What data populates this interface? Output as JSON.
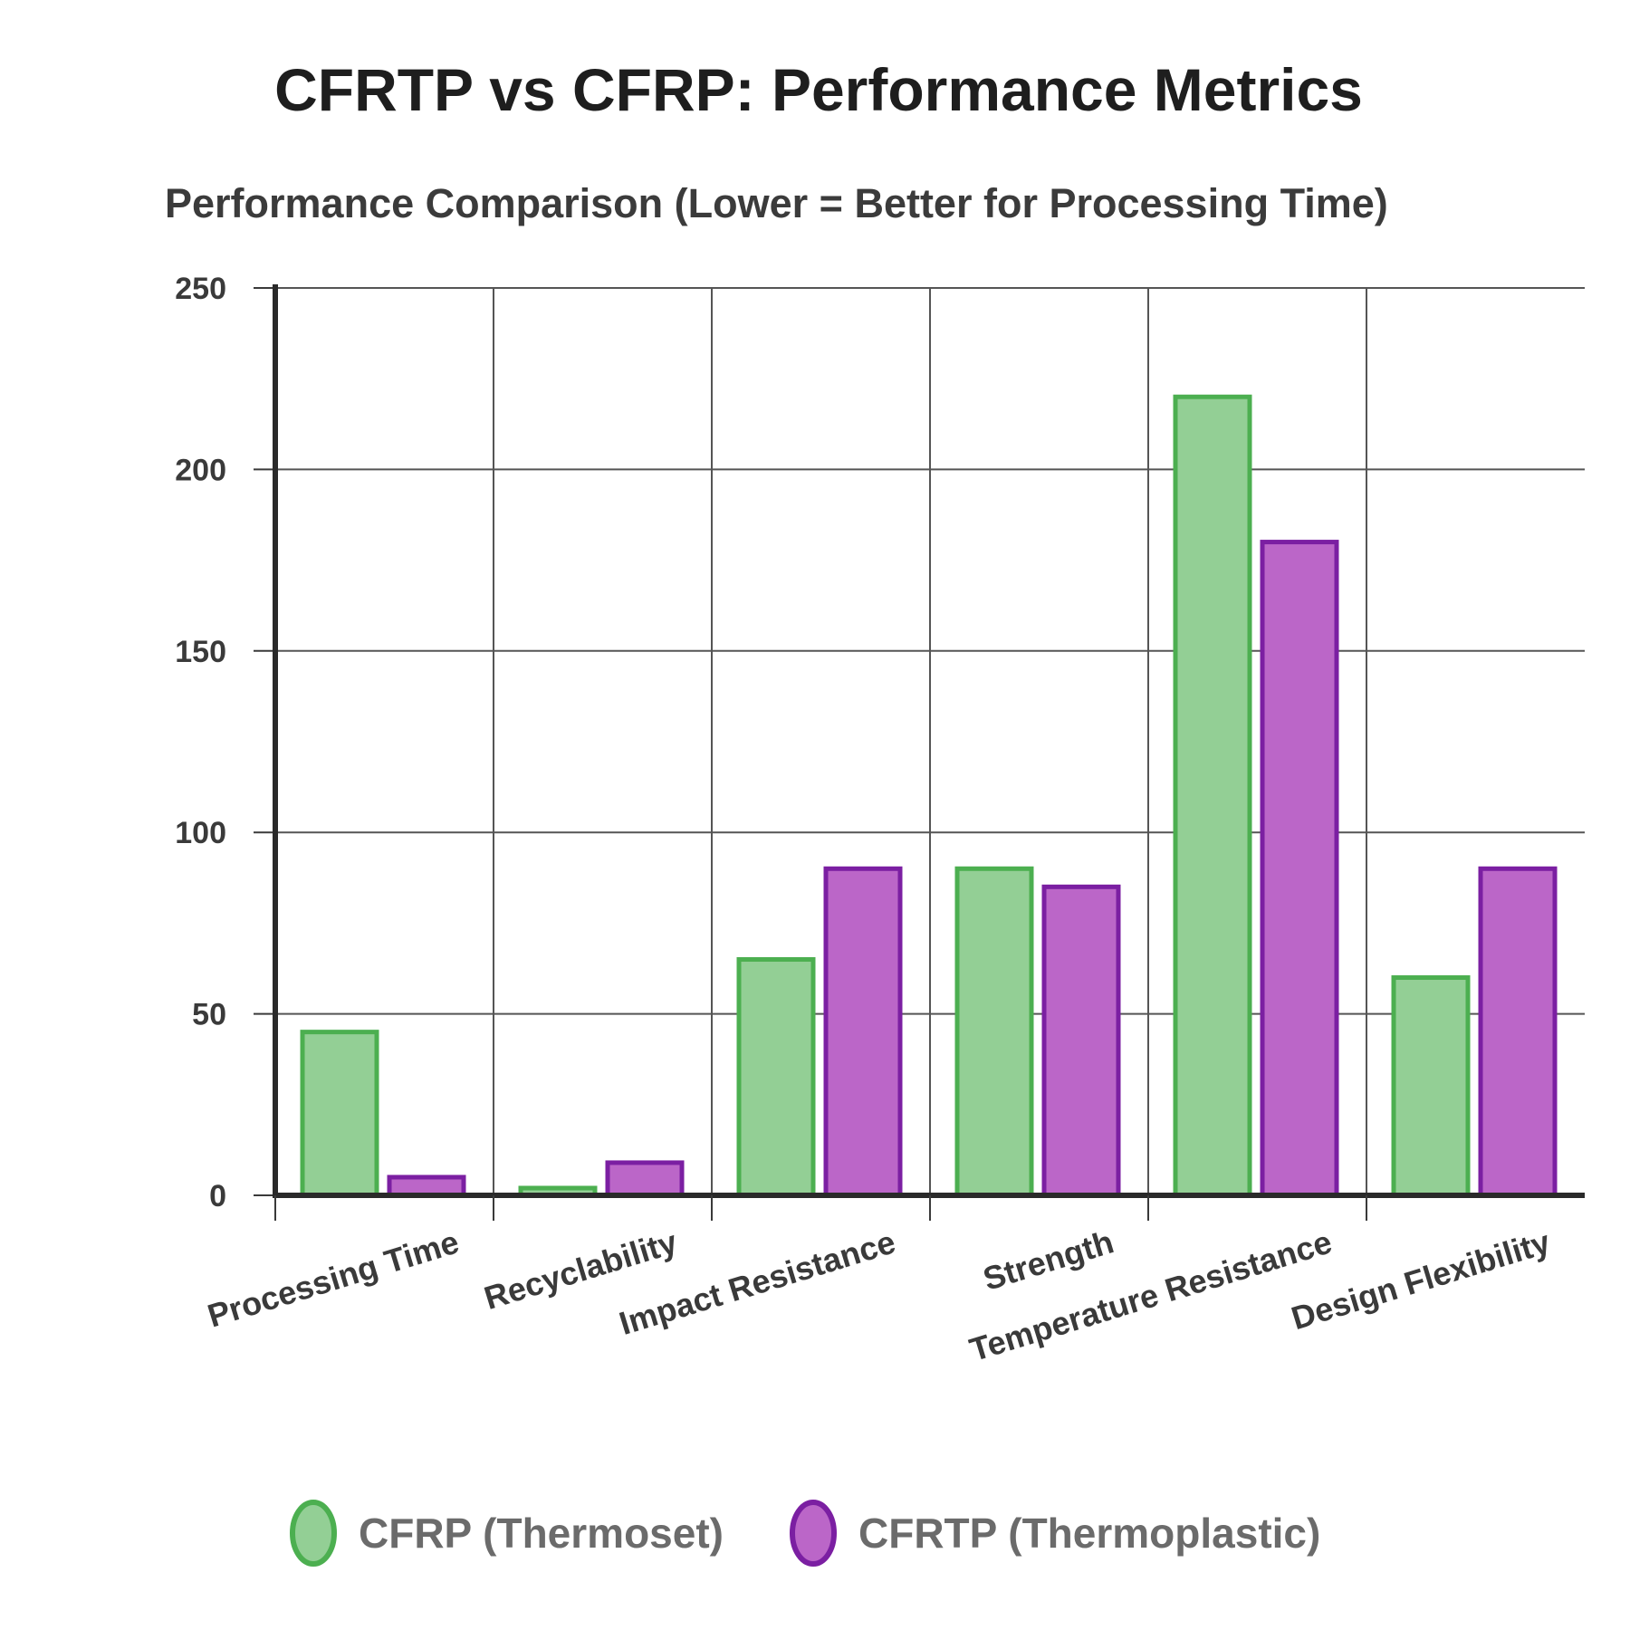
{
  "page": {
    "title": "CFRTP vs CFRP: Performance Metrics"
  },
  "chart_data": {
    "type": "bar",
    "title": "Performance Comparison (Lower = Better for Processing Time)",
    "xlabel": "",
    "ylabel": "",
    "categories": [
      "Processing Time",
      "Recyclability",
      "Impact Resistance",
      "Strength",
      "Temperature Resistance",
      "Design Flexibility"
    ],
    "series": [
      {
        "name": "CFRP (Thermoset)",
        "values": [
          45,
          2,
          65,
          90,
          220,
          60
        ],
        "fill": "#93cf95",
        "stroke": "#4caf50"
      },
      {
        "name": "CFRTP (Thermoplastic)",
        "values": [
          5,
          9,
          90,
          85,
          180,
          90
        ],
        "fill": "#bb66c8",
        "stroke": "#7b1fa2"
      }
    ],
    "ylim": [
      0,
      250
    ],
    "yticks": [
      0,
      50,
      100,
      150,
      200,
      250
    ],
    "grid": true,
    "legend_position": "bottom-center"
  }
}
